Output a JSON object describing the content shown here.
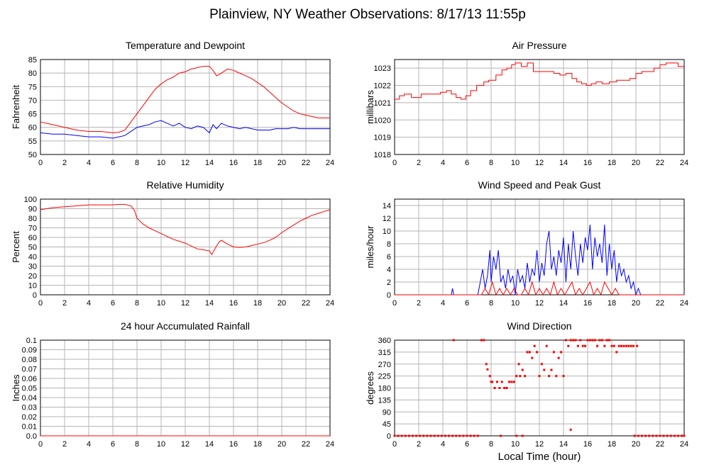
{
  "title": "Plainview, NY Weather Observations: 8/17/13 11:55p",
  "xlabel": "Local Time (hour)",
  "chart_data": [
    {
      "type": "line",
      "title": "Temperature and Dewpoint",
      "ylabel": "Fahrenheit",
      "xlim": [
        0,
        24
      ],
      "ylim": [
        50,
        85
      ],
      "xticks": [
        0,
        2,
        4,
        6,
        8,
        10,
        12,
        14,
        16,
        18,
        20,
        22,
        24
      ],
      "yticks": [
        50,
        55,
        60,
        65,
        70,
        75,
        80,
        85
      ],
      "grid": true,
      "series": [
        {
          "color": "#ff0000",
          "x": [
            0,
            1,
            2,
            3,
            4,
            5,
            6,
            6.5,
            7,
            7.5,
            8,
            8.5,
            9,
            9.5,
            10,
            10.5,
            11,
            11.5,
            12,
            12.5,
            13,
            13.5,
            14,
            14.3,
            14.6,
            15,
            15.5,
            16,
            16.5,
            17,
            17.5,
            18,
            18.5,
            19,
            19.5,
            20,
            20.5,
            21,
            21.5,
            22,
            22.5,
            23,
            23.5,
            24
          ],
          "y": [
            62,
            61,
            60,
            59,
            58.5,
            58.5,
            58,
            58.2,
            59,
            62,
            65,
            68,
            71,
            74,
            76,
            77.5,
            78.5,
            80,
            80.5,
            81.5,
            82,
            82.5,
            82.5,
            81,
            79,
            80,
            81.5,
            81,
            80,
            79,
            78,
            76.5,
            75,
            73,
            71,
            69,
            67.5,
            66,
            65,
            64.5,
            64,
            63.5,
            63.5,
            63.5
          ]
        },
        {
          "color": "#0000ff",
          "x": [
            0,
            1,
            2,
            3,
            4,
            5,
            6,
            6.5,
            7,
            7.5,
            8,
            8.5,
            9,
            9.5,
            10,
            10.5,
            11,
            11.5,
            12,
            12.5,
            13,
            13.5,
            14,
            14.3,
            14.6,
            15,
            15.5,
            16,
            16.5,
            17,
            17.5,
            18,
            18.5,
            19,
            19.5,
            20,
            20.5,
            21,
            21.5,
            22,
            22.5,
            23,
            23.5,
            24
          ],
          "y": [
            58,
            57.5,
            57.5,
            57,
            56.5,
            56.5,
            56,
            56.5,
            57,
            58.5,
            60,
            60.5,
            61,
            62,
            62.5,
            61.5,
            60.5,
            61.5,
            60,
            59.5,
            60.5,
            60,
            58,
            61,
            59.5,
            61.5,
            60.5,
            60,
            59.5,
            60,
            59.5,
            59,
            59,
            59,
            59.5,
            59.5,
            59.5,
            60,
            59.5,
            59.5,
            59.5,
            59.5,
            59.5,
            59.5
          ]
        }
      ]
    },
    {
      "type": "line",
      "title": "Air Pressure",
      "ylabel": "millibars",
      "xlim": [
        0,
        24
      ],
      "ylim": [
        1018,
        1023.5
      ],
      "xticks": [
        0,
        2,
        4,
        6,
        8,
        10,
        12,
        14,
        16,
        18,
        20,
        22,
        24
      ],
      "yticks": [
        1018,
        1019,
        1020,
        1021,
        1022,
        1023
      ],
      "grid": true,
      "series": [
        {
          "color": "#ff0000",
          "step": true,
          "x": [
            0,
            0.4,
            0.8,
            1.4,
            2.2,
            3.2,
            3.8,
            4.3,
            4.7,
            5.1,
            5.5,
            5.9,
            6.3,
            6.8,
            7.4,
            7.8,
            8.4,
            8.9,
            9.3,
            9.7,
            10.0,
            10.5,
            11.0,
            11.5,
            12.0,
            12.6,
            13.2,
            13.7,
            14.2,
            14.7,
            15.1,
            15.5,
            15.9,
            16.3,
            16.7,
            17.2,
            17.8,
            18.4,
            19.0,
            19.5,
            20.0,
            20.5,
            21.0,
            21.5,
            22.0,
            22.5,
            23.0,
            23.5,
            24
          ],
          "y": [
            1021.2,
            1021.4,
            1021.5,
            1021.3,
            1021.5,
            1021.5,
            1021.6,
            1021.7,
            1021.5,
            1021.3,
            1021.2,
            1021.4,
            1021.7,
            1022.0,
            1022.2,
            1022.3,
            1022.6,
            1022.9,
            1023.0,
            1023.2,
            1023.3,
            1023.1,
            1023.3,
            1022.8,
            1022.8,
            1022.8,
            1022.7,
            1022.6,
            1022.7,
            1022.4,
            1022.2,
            1022.1,
            1022.0,
            1022.1,
            1022.2,
            1022.1,
            1022.2,
            1022.3,
            1022.3,
            1022.4,
            1022.7,
            1022.8,
            1022.8,
            1023.0,
            1023.2,
            1023.3,
            1023.3,
            1023.1,
            1023.1
          ]
        }
      ]
    },
    {
      "type": "line",
      "title": "Relative Humidity",
      "ylabel": "Percent",
      "xlim": [
        0,
        24
      ],
      "ylim": [
        0,
        100
      ],
      "xticks": [
        0,
        2,
        4,
        6,
        8,
        10,
        12,
        14,
        16,
        18,
        20,
        22,
        24
      ],
      "yticks": [
        0,
        10,
        20,
        30,
        40,
        50,
        60,
        70,
        80,
        90,
        100
      ],
      "grid": true,
      "series": [
        {
          "color": "#ff0000",
          "x": [
            0,
            0.5,
            1,
            2,
            3,
            4,
            5,
            6,
            6.5,
            7,
            7.5,
            7.8,
            8,
            8.5,
            9,
            9.5,
            10,
            10.5,
            11,
            11.5,
            12,
            12.5,
            13,
            13.5,
            14,
            14.2,
            14.5,
            14.8,
            15,
            15.5,
            16,
            16.5,
            17,
            17.5,
            18,
            18.5,
            19,
            19.5,
            20,
            20.5,
            21,
            21.5,
            22,
            22.5,
            23,
            23.5,
            24
          ],
          "y": [
            89,
            90,
            91,
            92,
            93,
            94,
            94,
            94,
            94.5,
            94.5,
            93,
            88,
            80,
            74,
            70,
            67,
            64,
            61,
            58,
            56,
            54,
            51,
            48,
            47,
            46,
            42,
            49,
            55,
            57,
            53,
            50,
            49.5,
            50,
            51.5,
            53,
            54.5,
            57,
            60,
            65,
            69,
            73,
            77,
            80,
            83,
            85,
            87,
            89
          ]
        }
      ]
    },
    {
      "type": "line",
      "title": "Wind Speed and Peak Gust",
      "ylabel": "miles/hour",
      "xlim": [
        0,
        24
      ],
      "ylim": [
        0,
        15
      ],
      "xticks": [
        0,
        2,
        4,
        6,
        8,
        10,
        12,
        14,
        16,
        18,
        20,
        22,
        24
      ],
      "yticks": [
        0,
        2,
        4,
        6,
        8,
        10,
        12,
        14
      ],
      "grid": true,
      "series": [
        {
          "color": "#0000ff",
          "x": [
            0,
            4.7,
            4.8,
            4.9,
            6.9,
            7.1,
            7.3,
            7.5,
            7.7,
            7.9,
            8.0,
            8.2,
            8.4,
            8.6,
            8.8,
            9.0,
            9.2,
            9.4,
            9.6,
            9.8,
            10.0,
            10.2,
            10.4,
            10.6,
            10.8,
            11.0,
            11.2,
            11.4,
            11.6,
            11.8,
            12.0,
            12.2,
            12.4,
            12.6,
            12.8,
            13.0,
            13.2,
            13.4,
            13.6,
            13.8,
            14.0,
            14.2,
            14.4,
            14.6,
            14.8,
            15.0,
            15.2,
            15.4,
            15.6,
            15.8,
            16.0,
            16.2,
            16.4,
            16.6,
            16.8,
            17.0,
            17.2,
            17.4,
            17.6,
            17.8,
            18.0,
            18.2,
            18.4,
            18.6,
            18.8,
            19.0,
            19.2,
            19.4,
            19.6,
            19.8,
            20.0,
            20.2,
            20.4,
            21,
            24
          ],
          "y": [
            0,
            0,
            1,
            0,
            0,
            2,
            4,
            1,
            3,
            7,
            2,
            6,
            4,
            7,
            2,
            3,
            1,
            4,
            2,
            3,
            0,
            4,
            2,
            3,
            1,
            5,
            2,
            4,
            3,
            7,
            2,
            5,
            3,
            8,
            10,
            4,
            6,
            3,
            7,
            5,
            9,
            2,
            8,
            4,
            10,
            6,
            3,
            8,
            5,
            9,
            7,
            11,
            4,
            9,
            6,
            8,
            5,
            11,
            3,
            8,
            4,
            7,
            2,
            5,
            3,
            4,
            2,
            3,
            1,
            2,
            0,
            1,
            0,
            0,
            0
          ]
        },
        {
          "color": "#ff0000",
          "x": [
            0,
            7.2,
            7.5,
            7.8,
            8.1,
            8.4,
            8.7,
            9.0,
            9.3,
            9.6,
            9.9,
            10.2,
            10.5,
            10.8,
            11.1,
            11.4,
            11.7,
            12.0,
            12.3,
            12.6,
            12.9,
            13.2,
            13.5,
            13.8,
            14.1,
            14.4,
            14.7,
            15.0,
            15.3,
            15.6,
            15.9,
            16.2,
            16.5,
            16.8,
            17.1,
            17.4,
            17.7,
            18.0,
            18.3,
            18.6,
            19.0,
            24
          ],
          "y": [
            0,
            0,
            1,
            0,
            2,
            0,
            1,
            0,
            1,
            0,
            1,
            0,
            0,
            1,
            0,
            2,
            0,
            1,
            0,
            1,
            0,
            2,
            0,
            1,
            0,
            1,
            2,
            0,
            1,
            0,
            1,
            2,
            0,
            1,
            0,
            2,
            1,
            0,
            1,
            0,
            0,
            0
          ]
        }
      ]
    },
    {
      "type": "line",
      "title": "24 hour Accumulated Rainfall",
      "ylabel": "Inches",
      "xlim": [
        0,
        24
      ],
      "ylim": [
        0,
        0.1
      ],
      "xticks": [
        0,
        2,
        4,
        6,
        8,
        10,
        12,
        14,
        16,
        18,
        20,
        22,
        24
      ],
      "yticks": [
        "0.0",
        "0.01",
        "0.02",
        "0.03",
        "0.04",
        "0.05",
        "0.06",
        "0.07",
        "0.08",
        "0.09",
        "0.1"
      ],
      "grid": true,
      "series": [
        {
          "color": "#ff0000",
          "x": [
            0,
            24
          ],
          "y": [
            0,
            0
          ]
        }
      ]
    },
    {
      "type": "scatter",
      "title": "Wind Direction",
      "ylabel": "degrees",
      "xlim": [
        0,
        24
      ],
      "ylim": [
        0,
        360
      ],
      "xticks": [
        0,
        2,
        4,
        6,
        8,
        10,
        12,
        14,
        16,
        18,
        20,
        22,
        24
      ],
      "yticks": [
        0,
        45,
        90,
        135,
        180,
        225,
        270,
        315,
        360
      ],
      "grid": true,
      "series": [
        {
          "color": "#ff0000",
          "x": [
            0,
            0.3,
            0.6,
            0.9,
            1.2,
            1.5,
            1.8,
            2.1,
            2.4,
            2.7,
            3.0,
            3.3,
            3.6,
            3.9,
            4.2,
            4.5,
            4.8,
            5.1,
            5.4,
            5.7,
            6.0,
            6.3,
            6.6,
            6.9,
            4.9,
            7.2,
            7.4,
            7.6,
            7.7,
            7.9,
            8.0,
            8.1,
            8.3,
            8.5,
            8.7,
            8.9,
            9.1,
            9.3,
            9.5,
            9.7,
            9.9,
            10.1,
            10.3,
            10.4,
            10.6,
            10.8,
            11.0,
            11.2,
            11.4,
            11.6,
            11.8,
            12.0,
            12.2,
            12.4,
            12.6,
            12.8,
            13.0,
            13.2,
            13.4,
            13.6,
            13.8,
            14.0,
            14.2,
            14.4,
            14.6,
            14.8,
            15.0,
            15.2,
            15.4,
            15.6,
            15.8,
            16.0,
            16.2,
            16.4,
            16.6,
            16.8,
            17.0,
            17.2,
            17.4,
            17.6,
            17.8,
            18.0,
            18.2,
            18.4,
            18.6,
            18.8,
            19.0,
            19.2,
            19.4,
            19.6,
            19.8,
            20.1,
            8.8,
            10.1,
            10.6,
            14.6,
            17.6,
            19.9,
            20.2,
            20.5,
            20.8,
            21.1,
            21.4,
            21.7,
            22.0,
            22.3,
            22.6,
            22.9,
            23.2,
            23.5,
            23.8,
            24.0
          ],
          "y": [
            0,
            0,
            0,
            0,
            0,
            0,
            0,
            0,
            0,
            0,
            0,
            0,
            0,
            0,
            0,
            0,
            0,
            0,
            0,
            0,
            0,
            0,
            0,
            0,
            360,
            360,
            360,
            270,
            250,
            225,
            203,
            203,
            180,
            203,
            180,
            203,
            180,
            180,
            203,
            203,
            203,
            225,
            270,
            225,
            248,
            225,
            315,
            315,
            293,
            338,
            315,
            225,
            270,
            248,
            338,
            225,
            248,
            315,
            225,
            293,
            315,
            225,
            360,
            338,
            360,
            360,
            360,
            338,
            360,
            338,
            338,
            360,
            360,
            360,
            360,
            338,
            360,
            360,
            338,
            360,
            360,
            338,
            338,
            315,
            338,
            338,
            338,
            338,
            338,
            338,
            338,
            338,
            0,
            0,
            0,
            23,
            360,
            0,
            0,
            0,
            0,
            0,
            0,
            0,
            0,
            0,
            0,
            0,
            0,
            0,
            0,
            0
          ]
        }
      ]
    }
  ]
}
